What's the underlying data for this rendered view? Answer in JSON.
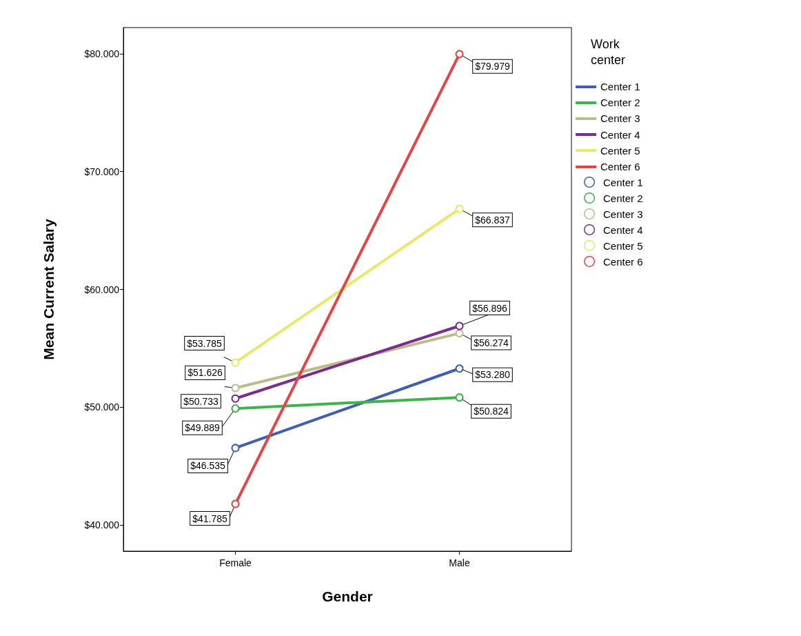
{
  "chart_data": {
    "type": "line",
    "xlabel": "Gender",
    "ylabel": "Mean Current Salary",
    "legend_title": "Work center",
    "categories": [
      "Female",
      "Male"
    ],
    "ylim": [
      37775,
      82225
    ],
    "yticks": [
      {
        "value": 40000,
        "label": "$40.000"
      },
      {
        "value": 50000,
        "label": "$50.000"
      },
      {
        "value": 60000,
        "label": "$60.000"
      },
      {
        "value": 70000,
        "label": "$70.000"
      },
      {
        "value": 80000,
        "label": "$80.000"
      }
    ],
    "series": [
      {
        "name": "Center 1",
        "color": "#3e5fb5",
        "values": [
          46535,
          53280
        ],
        "value_labels": [
          "$46.535",
          "$53.280"
        ]
      },
      {
        "name": "Center 2",
        "color": "#3cb44b",
        "values": [
          49889,
          50824
        ],
        "value_labels": [
          "$49.889",
          "$50.824"
        ]
      },
      {
        "name": "Center 3",
        "color": "#bdbb8c",
        "values": [
          51626,
          56274
        ],
        "value_labels": [
          "$51.626",
          "$56.274"
        ]
      },
      {
        "name": "Center 4",
        "color": "#7b2d8e",
        "values": [
          50733,
          56896
        ],
        "value_labels": [
          "$50.733",
          "$56.896"
        ]
      },
      {
        "name": "Center 5",
        "color": "#e8e86a",
        "values": [
          53785,
          66837
        ],
        "value_labels": [
          "$53.785",
          "$66.837"
        ]
      },
      {
        "name": "Center 6",
        "color": "#e84343",
        "values": [
          41785,
          79979
        ],
        "value_labels": [
          "$41.785",
          "$79.979"
        ]
      }
    ],
    "marker": "circle",
    "line_style": "solid",
    "grid": false,
    "legend": "right"
  }
}
